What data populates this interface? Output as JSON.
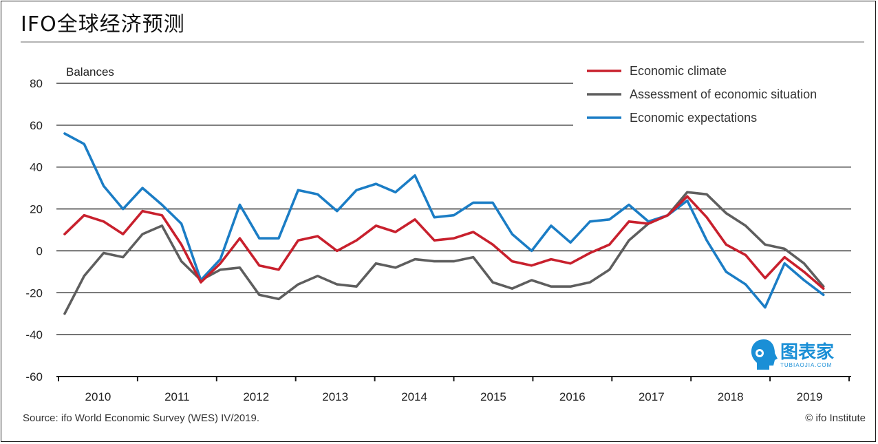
{
  "title": "IFO全球经济预测",
  "source": "Source: ifo World Economic Survey (WES) IV/2019.",
  "credit": "© ifo Institute",
  "watermark": {
    "text": "图表家",
    "sub": "TUBIAOJIA.COM",
    "color": "#1a8fd6"
  },
  "chart_data": {
    "type": "line",
    "ylabel": "Balances",
    "ylim": [
      -60,
      80
    ],
    "yticks": [
      80,
      60,
      40,
      20,
      0,
      -20,
      -40,
      -60
    ],
    "year_labels": [
      "2010",
      "2011",
      "2012",
      "2013",
      "2014",
      "2015",
      "2016",
      "2017",
      "2018",
      "2019"
    ],
    "x_start": 2009.75,
    "x_step": 0.25,
    "series": [
      {
        "name": "Economic climate",
        "color": "#c8202d",
        "values": [
          8,
          17,
          14,
          8,
          19,
          17,
          3,
          -15,
          -6,
          6,
          -7,
          -9,
          5,
          7,
          0,
          5,
          12,
          9,
          15,
          5,
          6,
          9,
          3,
          -5,
          -7,
          -4,
          -6,
          -1,
          3,
          14,
          13,
          17,
          26,
          16,
          3,
          -2,
          -13,
          -3,
          -10,
          -18
        ]
      },
      {
        "name": "Assessment of economic situation",
        "color": "#5e5e5e",
        "values": [
          -30,
          -12,
          -1,
          -3,
          8,
          12,
          -5,
          -14,
          -9,
          -8,
          -21,
          -23,
          -16,
          -12,
          -16,
          -17,
          -6,
          -8,
          -4,
          -5,
          -5,
          -3,
          -15,
          -18,
          -14,
          -17,
          -17,
          -15,
          -9,
          5,
          13,
          17,
          28,
          27,
          18,
          12,
          3,
          1,
          -6,
          -17
        ]
      },
      {
        "name": "Economic expectations",
        "color": "#1b7dc5",
        "values": [
          56,
          51,
          31,
          20,
          30,
          22,
          13,
          -14,
          -4,
          22,
          6,
          6,
          29,
          27,
          19,
          29,
          32,
          28,
          36,
          16,
          17,
          23,
          23,
          8,
          0,
          12,
          4,
          14,
          15,
          22,
          14,
          17,
          24,
          5,
          -10,
          -16,
          -27,
          -6,
          -14,
          -21
        ]
      }
    ]
  }
}
